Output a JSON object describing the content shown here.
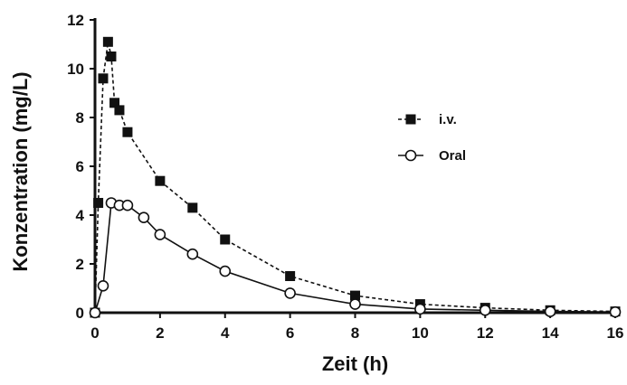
{
  "chart_data": {
    "type": "line",
    "title": "",
    "xlabel": "Zeit (h)",
    "ylabel": "Konzentration (mg/L)",
    "xlim": [
      0,
      16
    ],
    "ylim": [
      0,
      12
    ],
    "xticks": [
      "0",
      "2",
      "4",
      "6",
      "8",
      "10",
      "12",
      "14",
      "16"
    ],
    "yticks": [
      "0",
      "2",
      "4",
      "6",
      "8",
      "10",
      "12"
    ],
    "grid": false,
    "legend_position": "right",
    "series": [
      {
        "name": "i.v.",
        "marker": "filled-square",
        "line_style": "dashed",
        "color": "#111111",
        "points": [
          {
            "x": 0,
            "y": 0
          },
          {
            "x": 0.1,
            "y": 4.5
          },
          {
            "x": 0.25,
            "y": 9.6
          },
          {
            "x": 0.4,
            "y": 11.1
          },
          {
            "x": 0.5,
            "y": 10.5
          },
          {
            "x": 0.6,
            "y": 8.6
          },
          {
            "x": 0.75,
            "y": 8.3
          },
          {
            "x": 1,
            "y": 7.4
          },
          {
            "x": 2,
            "y": 5.4
          },
          {
            "x": 3,
            "y": 4.3
          },
          {
            "x": 4,
            "y": 3.0
          },
          {
            "x": 6,
            "y": 1.5
          },
          {
            "x": 8,
            "y": 0.7
          },
          {
            "x": 10,
            "y": 0.35
          },
          {
            "x": 12,
            "y": 0.2
          },
          {
            "x": 14,
            "y": 0.1
          },
          {
            "x": 16,
            "y": 0.05
          }
        ]
      },
      {
        "name": "Oral",
        "marker": "open-circle",
        "line_style": "solid",
        "color": "#111111",
        "points": [
          {
            "x": 0,
            "y": 0
          },
          {
            "x": 0.25,
            "y": 1.1
          },
          {
            "x": 0.5,
            "y": 4.5
          },
          {
            "x": 0.75,
            "y": 4.4
          },
          {
            "x": 1,
            "y": 4.4
          },
          {
            "x": 1.5,
            "y": 3.9
          },
          {
            "x": 2,
            "y": 3.2
          },
          {
            "x": 3,
            "y": 2.4
          },
          {
            "x": 4,
            "y": 1.7
          },
          {
            "x": 6,
            "y": 0.8
          },
          {
            "x": 8,
            "y": 0.35
          },
          {
            "x": 10,
            "y": 0.15
          },
          {
            "x": 12,
            "y": 0.1
          },
          {
            "x": 14,
            "y": 0.05
          },
          {
            "x": 16,
            "y": 0.03
          }
        ]
      }
    ]
  }
}
